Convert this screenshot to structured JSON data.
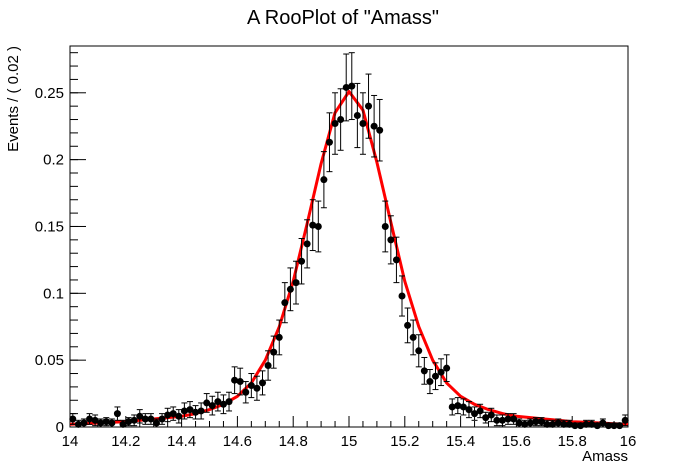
{
  "chart_data": {
    "type": "scatter",
    "title": "A RooPlot of \"Amass\"",
    "xlabel": "Amass",
    "ylabel": "Events / ( 0.02 )",
    "xlim": [
      14,
      16
    ],
    "ylim": [
      0,
      0.285
    ],
    "x_ticks": [
      "14",
      "14.2",
      "14.4",
      "14.6",
      "14.8",
      "15",
      "15.2",
      "15.4",
      "15.6",
      "15.8",
      "16"
    ],
    "y_ticks": [
      "0",
      "0.05",
      "0.1",
      "0.15",
      "0.2",
      "0.25"
    ],
    "grid": false,
    "legend": "none",
    "colors": {
      "points": "#000000",
      "fit": "#ff0000"
    },
    "series": [
      {
        "type": "points",
        "x": [
          14.01,
          14.03,
          14.05,
          14.07,
          14.09,
          14.11,
          14.13,
          14.15,
          14.17,
          14.19,
          14.21,
          14.23,
          14.25,
          14.27,
          14.29,
          14.31,
          14.33,
          14.35,
          14.37,
          14.39,
          14.41,
          14.43,
          14.45,
          14.47,
          14.49,
          14.51,
          14.53,
          14.55,
          14.57,
          14.59,
          14.61,
          14.63,
          14.65,
          14.67,
          14.69,
          14.71,
          14.73,
          14.75,
          14.77,
          14.79,
          14.81,
          14.83,
          14.85,
          14.87,
          14.89,
          14.91,
          14.93,
          14.95,
          14.97,
          14.99,
          15.01,
          15.03,
          15.05,
          15.07,
          15.09,
          15.11,
          15.13,
          15.15,
          15.17,
          15.19,
          15.21,
          15.23,
          15.25,
          15.27,
          15.29,
          15.31,
          15.33,
          15.35,
          15.37,
          15.39,
          15.41,
          15.43,
          15.45,
          15.47,
          15.49,
          15.51,
          15.53,
          15.55,
          15.57,
          15.59,
          15.61,
          15.63,
          15.65,
          15.67,
          15.69,
          15.71,
          15.73,
          15.75,
          15.77,
          15.79,
          15.81,
          15.83,
          15.85,
          15.87,
          15.89,
          15.91,
          15.93,
          15.95,
          15.97,
          15.99
        ],
        "y": [
          0.006,
          0.002,
          0.003,
          0.006,
          0.005,
          0.003,
          0.004,
          0.003,
          0.01,
          0.002,
          0.004,
          0.005,
          0.008,
          0.006,
          0.006,
          0.003,
          0.006,
          0.009,
          0.01,
          0.008,
          0.012,
          0.013,
          0.011,
          0.012,
          0.018,
          0.016,
          0.019,
          0.017,
          0.019,
          0.035,
          0.034,
          0.026,
          0.031,
          0.029,
          0.033,
          0.046,
          0.056,
          0.067,
          0.093,
          0.103,
          0.108,
          0.124,
          0.137,
          0.151,
          0.15,
          0.185,
          0.213,
          0.227,
          0.23,
          0.254,
          0.255,
          0.233,
          0.227,
          0.24,
          0.225,
          0.222,
          0.15,
          0.14,
          0.125,
          0.098,
          0.076,
          0.067,
          0.057,
          0.042,
          0.034,
          0.038,
          0.041,
          0.044,
          0.015,
          0.016,
          0.015,
          0.013,
          0.01,
          0.012,
          0.007,
          0.009,
          0.005,
          0.005,
          0.006,
          0.006,
          0.003,
          0.002,
          0.003,
          0.004,
          0.004,
          0.002,
          0.002,
          0.003,
          0.002,
          0.002,
          0.001,
          0.001,
          0.002,
          0.002,
          0.001,
          0.003,
          0.001,
          0.001,
          0.001,
          0.005
        ],
        "yerr": [
          0.004,
          0.003,
          0.003,
          0.004,
          0.004,
          0.003,
          0.003,
          0.003,
          0.005,
          0.003,
          0.003,
          0.004,
          0.005,
          0.004,
          0.004,
          0.003,
          0.004,
          0.005,
          0.005,
          0.005,
          0.006,
          0.006,
          0.005,
          0.006,
          0.007,
          0.007,
          0.007,
          0.007,
          0.007,
          0.01,
          0.01,
          0.008,
          0.009,
          0.009,
          0.009,
          0.011,
          0.012,
          0.013,
          0.015,
          0.016,
          0.016,
          0.017,
          0.018,
          0.019,
          0.019,
          0.021,
          0.022,
          0.023,
          0.023,
          0.025,
          0.025,
          0.024,
          0.023,
          0.024,
          0.023,
          0.023,
          0.019,
          0.018,
          0.017,
          0.015,
          0.013,
          0.013,
          0.012,
          0.01,
          0.009,
          0.01,
          0.01,
          0.01,
          0.006,
          0.006,
          0.006,
          0.006,
          0.005,
          0.005,
          0.004,
          0.005,
          0.004,
          0.004,
          0.004,
          0.004,
          0.003,
          0.003,
          0.003,
          0.003,
          0.003,
          0.003,
          0.003,
          0.003,
          0.003,
          0.003,
          0.002,
          0.002,
          0.003,
          0.003,
          0.002,
          0.003,
          0.002,
          0.002,
          0.002,
          0.004
        ]
      },
      {
        "type": "curve",
        "x": [
          14.0,
          14.05,
          14.1,
          14.15,
          14.2,
          14.25,
          14.3,
          14.35,
          14.4,
          14.45,
          14.5,
          14.55,
          14.6,
          14.65,
          14.7,
          14.75,
          14.8,
          14.85,
          14.9,
          14.95,
          15.0,
          15.05,
          15.1,
          15.15,
          15.2,
          15.25,
          15.3,
          15.35,
          15.4,
          15.45,
          15.5,
          15.55,
          15.6,
          15.65,
          15.7,
          15.75,
          15.8,
          15.85,
          15.9,
          15.95,
          16.0
        ],
        "y": [
          0.002,
          0.0025,
          0.003,
          0.0035,
          0.004,
          0.005,
          0.006,
          0.007,
          0.008,
          0.01,
          0.013,
          0.017,
          0.023,
          0.033,
          0.05,
          0.075,
          0.109,
          0.152,
          0.197,
          0.235,
          0.251,
          0.237,
          0.198,
          0.153,
          0.109,
          0.075,
          0.05,
          0.033,
          0.023,
          0.017,
          0.013,
          0.01,
          0.008,
          0.007,
          0.006,
          0.005,
          0.004,
          0.0035,
          0.003,
          0.0025,
          0.002
        ]
      }
    ]
  }
}
